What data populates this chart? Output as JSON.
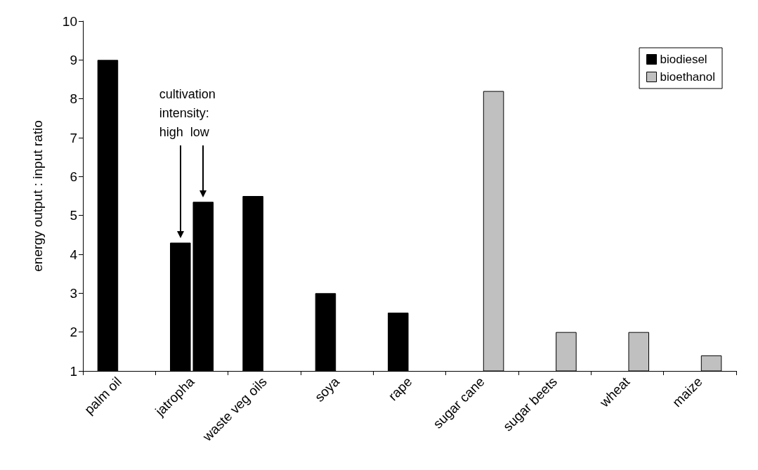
{
  "chart_data": {
    "type": "bar",
    "ylabel": "energy output : input ratio",
    "categories": [
      "palm oil",
      "jatropha",
      "waste veg oils",
      "soya",
      "rape",
      "sugar cane",
      "sugar beets",
      "wheat",
      "maize"
    ],
    "series": [
      {
        "name": "biodiesel",
        "color": "#000000",
        "values": [
          9,
          4.3,
          5.5,
          3,
          2.5,
          null,
          null,
          null,
          null
        ]
      },
      {
        "name": "bioethanol",
        "color": "#c0c0c0",
        "colors": [
          "#c0c0c0",
          "#000000",
          "#c0c0c0",
          "#c0c0c0",
          "#c0c0c0",
          "#c0c0c0",
          "#c0c0c0",
          "#c0c0c0",
          "#c0c0c0"
        ],
        "values": [
          null,
          5.35,
          null,
          null,
          null,
          8.2,
          2,
          2,
          1.4
        ]
      }
    ],
    "annotations": [
      "cultivation\nintensity:\nhigh  low"
    ],
    "ylim": [
      1,
      10
    ],
    "yticks": [
      1,
      2,
      3,
      4,
      5,
      6,
      7,
      8,
      9,
      10
    ],
    "grid": false,
    "legend": "top right"
  }
}
